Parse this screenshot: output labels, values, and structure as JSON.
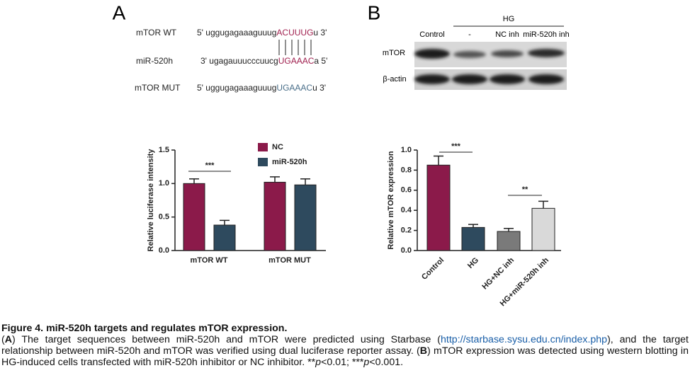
{
  "panel_a": {
    "label": "A",
    "sequences": [
      {
        "name": "mTOR WT",
        "prefix": "5' uggugagaaaguuug",
        "site": "ACUUUG",
        "suffix": "u 3'"
      },
      {
        "name": "miR-520h",
        "prefix": "3' ugagauuucccuucg",
        "site": "UGAAAC",
        "suffix": "a 5'"
      },
      {
        "name": "mTOR MUT",
        "prefix": "5' uggugagaaaguuug",
        "site": "UGAAAC",
        "suffix": "u 3'"
      }
    ]
  },
  "panel_b": {
    "label": "B",
    "group": "HG",
    "lanes": [
      "Control",
      "-",
      "NC inh",
      "miR-520h inh"
    ],
    "rows": [
      "mTOR",
      "β-actin"
    ]
  },
  "chart_data": [
    {
      "type": "grouped-bar",
      "y_label": "Relative luciferase intensity",
      "categories": [
        "mTOR WT",
        "mTOR MUT"
      ],
      "series": [
        {
          "name": "NC",
          "color": "#8b1a4a",
          "values": [
            1.0,
            1.02
          ],
          "errors": [
            0.07,
            0.08
          ]
        },
        {
          "name": "miR-520h",
          "color": "#2e4a5e",
          "values": [
            0.38,
            0.98
          ],
          "errors": [
            0.07,
            0.09
          ]
        }
      ],
      "ylim": [
        0,
        1.5
      ],
      "yticks": [
        {
          "value": 0,
          "label": "0.0"
        },
        0.5,
        {
          "value": 1,
          "label": "1.0"
        },
        1.5
      ],
      "annotations": [
        "***"
      ]
    },
    {
      "type": "bar",
      "y_label": "Relative mTOR expression",
      "categories": [
        "Control",
        "HG",
        "HG+NC inh",
        "HG+miR-520h inh"
      ],
      "values": [
        0.85,
        0.23,
        0.19,
        0.42
      ],
      "errors": [
        0.09,
        0.03,
        0.03,
        0.07
      ],
      "colors": [
        "#8b1a4a",
        "#2e4a5e",
        "#7a7a7a",
        "#d9d9d9"
      ],
      "ylim": [
        0,
        1
      ],
      "yticks": [
        {
          "value": 0,
          "label": "0.0"
        },
        0.2,
        0.4,
        0.6,
        0.8,
        {
          "value": 1,
          "label": "1.0"
        }
      ],
      "annotations": [
        "***",
        "**"
      ]
    }
  ],
  "caption": {
    "title": "Figure 4. miR-520h targets and regulates mTOR expression.",
    "parts": [
      "(",
      "A",
      ") The target sequences between miR-520h and mTOR were predicted using Starbase (",
      "http://starbase.sysu.edu.cn/index.php",
      "), and the target relationship between miR-520h and mTOR was verified using dual luciferase reporter assay. (",
      "B",
      ") mTOR expression was detected using western blotting in HG-induced cells transfected with miR-520h inhibitor or NC inhibitor. **",
      "p",
      "<0.01; ***",
      "p",
      "<0.001."
    ]
  }
}
